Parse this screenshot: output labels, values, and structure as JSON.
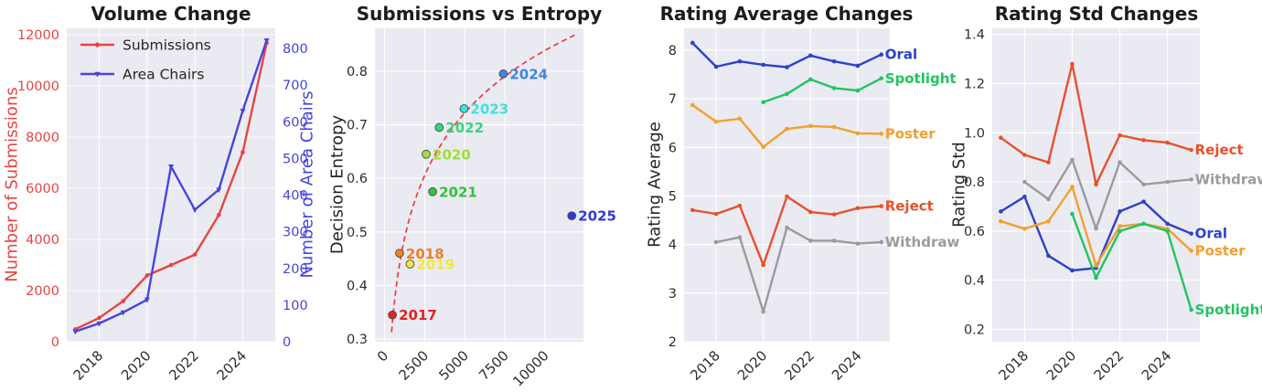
{
  "style": {
    "background": "#ffffff",
    "plot_bg": "#eaeaf2",
    "grid": "#ffffff",
    "tick_color": "#2e2e2e",
    "title_color": "#1c1c1c",
    "legend_text_color": "#262626"
  },
  "chart_data": [
    {
      "type": "line",
      "title": "Volume Change",
      "ylabel": "Number of Submissions",
      "ylabel2": "Number of Area Chairs",
      "yaxis_color": "#e64543",
      "yaxis2_color": "#4745dc",
      "xlim": [
        2016.64,
        2025.36
      ],
      "ylim": [
        0,
        12250
      ],
      "ylim2": [
        0,
        855
      ],
      "legend": true,
      "xticks": [
        {
          "v": 2018,
          "label": "2018"
        },
        {
          "v": 2020,
          "label": "2020"
        },
        {
          "v": 2022,
          "label": "2022"
        },
        {
          "v": 2024,
          "label": "2024"
        }
      ],
      "yticks": [
        {
          "v": 0,
          "label": "0"
        },
        {
          "v": 2000,
          "label": "2000"
        },
        {
          "v": 4000,
          "label": "4000"
        },
        {
          "v": 6000,
          "label": "6000"
        },
        {
          "v": 8000,
          "label": "8000"
        },
        {
          "v": 10000,
          "label": "10000"
        },
        {
          "v": 12000,
          "label": "12000"
        }
      ],
      "yticks2": [
        {
          "v": 0,
          "label": "0"
        },
        {
          "v": 100,
          "label": "100"
        },
        {
          "v": 200,
          "label": "200"
        },
        {
          "v": 300,
          "label": "300"
        },
        {
          "v": 400,
          "label": "400"
        },
        {
          "v": 500,
          "label": "500"
        },
        {
          "v": 600,
          "label": "600"
        },
        {
          "v": 700,
          "label": "700"
        },
        {
          "v": 800,
          "label": "800"
        }
      ],
      "series": [
        {
          "name": "Submissions",
          "color": "#e64543",
          "axis": "left",
          "marker": "o",
          "x": [
            2017,
            2018,
            2019,
            2020,
            2021,
            2022,
            2023,
            2024,
            2025
          ],
          "values": [
            490,
            935,
            1591,
            2594,
            2997,
            3407,
            4955,
            7404,
            11672
          ]
        },
        {
          "name": "Area Chairs",
          "color": "#4745dc",
          "axis": "right",
          "marker": "v",
          "x": [
            2017,
            2018,
            2019,
            2020,
            2021,
            2022,
            2023,
            2024,
            2025
          ],
          "values": [
            28,
            50,
            80,
            115,
            478,
            360,
            415,
            630,
            822
          ]
        }
      ]
    },
    {
      "type": "scatter",
      "title": "Submissions vs Entropy",
      "ylabel": "Decision Entropy",
      "xlim": [
        -600,
        12400
      ],
      "ylim": [
        0.295,
        0.88
      ],
      "xticks": [
        {
          "v": 0,
          "label": "0"
        },
        {
          "v": 2500,
          "label": "2500"
        },
        {
          "v": 5000,
          "label": "5000"
        },
        {
          "v": 7500,
          "label": "7500"
        },
        {
          "v": 10000,
          "label": "10000"
        }
      ],
      "yticks": [
        {
          "v": 0.3,
          "label": "0.3"
        },
        {
          "v": 0.4,
          "label": "0.4"
        },
        {
          "v": 0.5,
          "label": "0.5"
        },
        {
          "v": 0.6,
          "label": "0.6"
        },
        {
          "v": 0.7,
          "label": "0.7"
        },
        {
          "v": 0.8,
          "label": "0.8"
        }
      ],
      "fit": {
        "color": "#ee3b3b",
        "x_range": [
          440,
          11900
        ],
        "y_range": [
          0.313,
          0.868
        ]
      },
      "points": [
        {
          "label": "2017",
          "x": 490,
          "y": 0.345,
          "color": "#e02424"
        },
        {
          "label": "2018",
          "x": 935,
          "y": 0.46,
          "color": "#ee7f28"
        },
        {
          "label": "2019",
          "x": 1591,
          "y": 0.44,
          "color": "#f0e93c"
        },
        {
          "label": "2020",
          "x": 2594,
          "y": 0.645,
          "color": "#9ce03a"
        },
        {
          "label": "2021",
          "x": 2997,
          "y": 0.575,
          "color": "#32c23c"
        },
        {
          "label": "2022",
          "x": 3407,
          "y": 0.695,
          "color": "#35d47e"
        },
        {
          "label": "2023",
          "x": 4955,
          "y": 0.73,
          "color": "#38e3e3"
        },
        {
          "label": "2024",
          "x": 7404,
          "y": 0.795,
          "color": "#3e86e0"
        },
        {
          "label": "2025",
          "x": 11672,
          "y": 0.53,
          "color": "#3438d8"
        }
      ]
    },
    {
      "type": "line",
      "title": "Rating Average Changes",
      "ylabel": "Rating Average",
      "xlim": [
        2016.64,
        2025.36
      ],
      "ylim": [
        2,
        8.45
      ],
      "xticks": [
        {
          "v": 2018,
          "label": "2018"
        },
        {
          "v": 2020,
          "label": "2020"
        },
        {
          "v": 2022,
          "label": "2022"
        },
        {
          "v": 2024,
          "label": "2024"
        }
      ],
      "yticks": [
        {
          "v": 2,
          "label": "2"
        },
        {
          "v": 3,
          "label": "3"
        },
        {
          "v": 4,
          "label": "4"
        },
        {
          "v": 5,
          "label": "5"
        },
        {
          "v": 6,
          "label": "6"
        },
        {
          "v": 7,
          "label": "7"
        },
        {
          "v": 8,
          "label": "8"
        }
      ],
      "series": [
        {
          "name": "Oral",
          "color": "#2c41cb",
          "end_label": true,
          "marker": "o",
          "x": [
            2017,
            2018,
            2019,
            2020,
            2021,
            2022,
            2023,
            2024,
            2025
          ],
          "values": [
            8.15,
            7.66,
            7.77,
            7.7,
            7.65,
            7.89,
            7.77,
            7.68,
            7.91
          ]
        },
        {
          "name": "Spotlight",
          "color": "#21c562",
          "end_label": true,
          "marker": "o",
          "x": [
            2020,
            2021,
            2022,
            2023,
            2024,
            2025
          ],
          "values": [
            6.93,
            7.1,
            7.4,
            7.22,
            7.17,
            7.42
          ]
        },
        {
          "name": "Poster",
          "color": "#f3a02c",
          "end_label": true,
          "marker": "o",
          "x": [
            2017,
            2018,
            2019,
            2020,
            2021,
            2022,
            2023,
            2024,
            2025
          ],
          "values": [
            6.87,
            6.53,
            6.59,
            6.01,
            6.38,
            6.44,
            6.42,
            6.29,
            6.28
          ]
        },
        {
          "name": "Reject",
          "color": "#e8512b",
          "end_label": true,
          "marker": "o",
          "x": [
            2017,
            2018,
            2019,
            2020,
            2021,
            2022,
            2023,
            2024,
            2025
          ],
          "values": [
            4.71,
            4.63,
            4.8,
            3.58,
            4.99,
            4.67,
            4.62,
            4.75,
            4.79
          ]
        },
        {
          "name": "Withdraw",
          "color": "#9b9b9b",
          "end_label": true,
          "marker": "o",
          "x": [
            2018,
            2019,
            2020,
            2021,
            2022,
            2023,
            2024,
            2025
          ],
          "values": [
            4.05,
            4.15,
            2.62,
            4.35,
            4.08,
            4.08,
            4.02,
            4.05
          ]
        }
      ]
    },
    {
      "type": "line",
      "title": "Rating Std Changes",
      "ylabel": "Rating Std",
      "xlim": [
        2016.64,
        2025.36
      ],
      "ylim": [
        0.15,
        1.425
      ],
      "xticks": [
        {
          "v": 2018,
          "label": "2018"
        },
        {
          "v": 2020,
          "label": "2020"
        },
        {
          "v": 2022,
          "label": "2022"
        },
        {
          "v": 2024,
          "label": "2024"
        }
      ],
      "yticks": [
        {
          "v": 0.2,
          "label": "0.2"
        },
        {
          "v": 0.4,
          "label": "0.4"
        },
        {
          "v": 0.6,
          "label": "0.6"
        },
        {
          "v": 0.8,
          "label": "0.8"
        },
        {
          "v": 1.0,
          "label": "1.0"
        },
        {
          "v": 1.2,
          "label": "1.2"
        },
        {
          "v": 1.4,
          "label": "1.4"
        }
      ],
      "series": [
        {
          "name": "Reject",
          "color": "#e8512b",
          "end_label": true,
          "marker": "o",
          "x": [
            2017,
            2018,
            2019,
            2020,
            2021,
            2022,
            2023,
            2024,
            2025
          ],
          "values": [
            0.98,
            0.91,
            0.88,
            1.28,
            0.79,
            0.99,
            0.97,
            0.96,
            0.93
          ]
        },
        {
          "name": "Withdraw",
          "color": "#9b9b9b",
          "end_label": true,
          "marker": "o",
          "x": [
            2018,
            2019,
            2020,
            2021,
            2022,
            2023,
            2024,
            2025
          ],
          "values": [
            0.8,
            0.73,
            0.89,
            0.61,
            0.88,
            0.79,
            0.8,
            0.81
          ]
        },
        {
          "name": "Oral",
          "color": "#2c41cb",
          "end_label": true,
          "marker": "o",
          "x": [
            2017,
            2018,
            2019,
            2020,
            2021,
            2022,
            2023,
            2024,
            2025
          ],
          "values": [
            0.68,
            0.74,
            0.5,
            0.44,
            0.45,
            0.68,
            0.72,
            0.63,
            0.59
          ]
        },
        {
          "name": "Poster",
          "color": "#f3a02c",
          "end_label": true,
          "marker": "o",
          "x": [
            2017,
            2018,
            2019,
            2020,
            2021,
            2022,
            2023,
            2024,
            2025
          ],
          "values": [
            0.64,
            0.61,
            0.64,
            0.78,
            0.46,
            0.62,
            0.63,
            0.61,
            0.52
          ]
        },
        {
          "name": "Spotlight",
          "color": "#21c562",
          "end_label": true,
          "marker": "o",
          "x": [
            2020,
            2021,
            2022,
            2023,
            2024,
            2025
          ],
          "values": [
            0.67,
            0.41,
            0.6,
            0.63,
            0.6,
            0.28
          ]
        }
      ]
    }
  ]
}
